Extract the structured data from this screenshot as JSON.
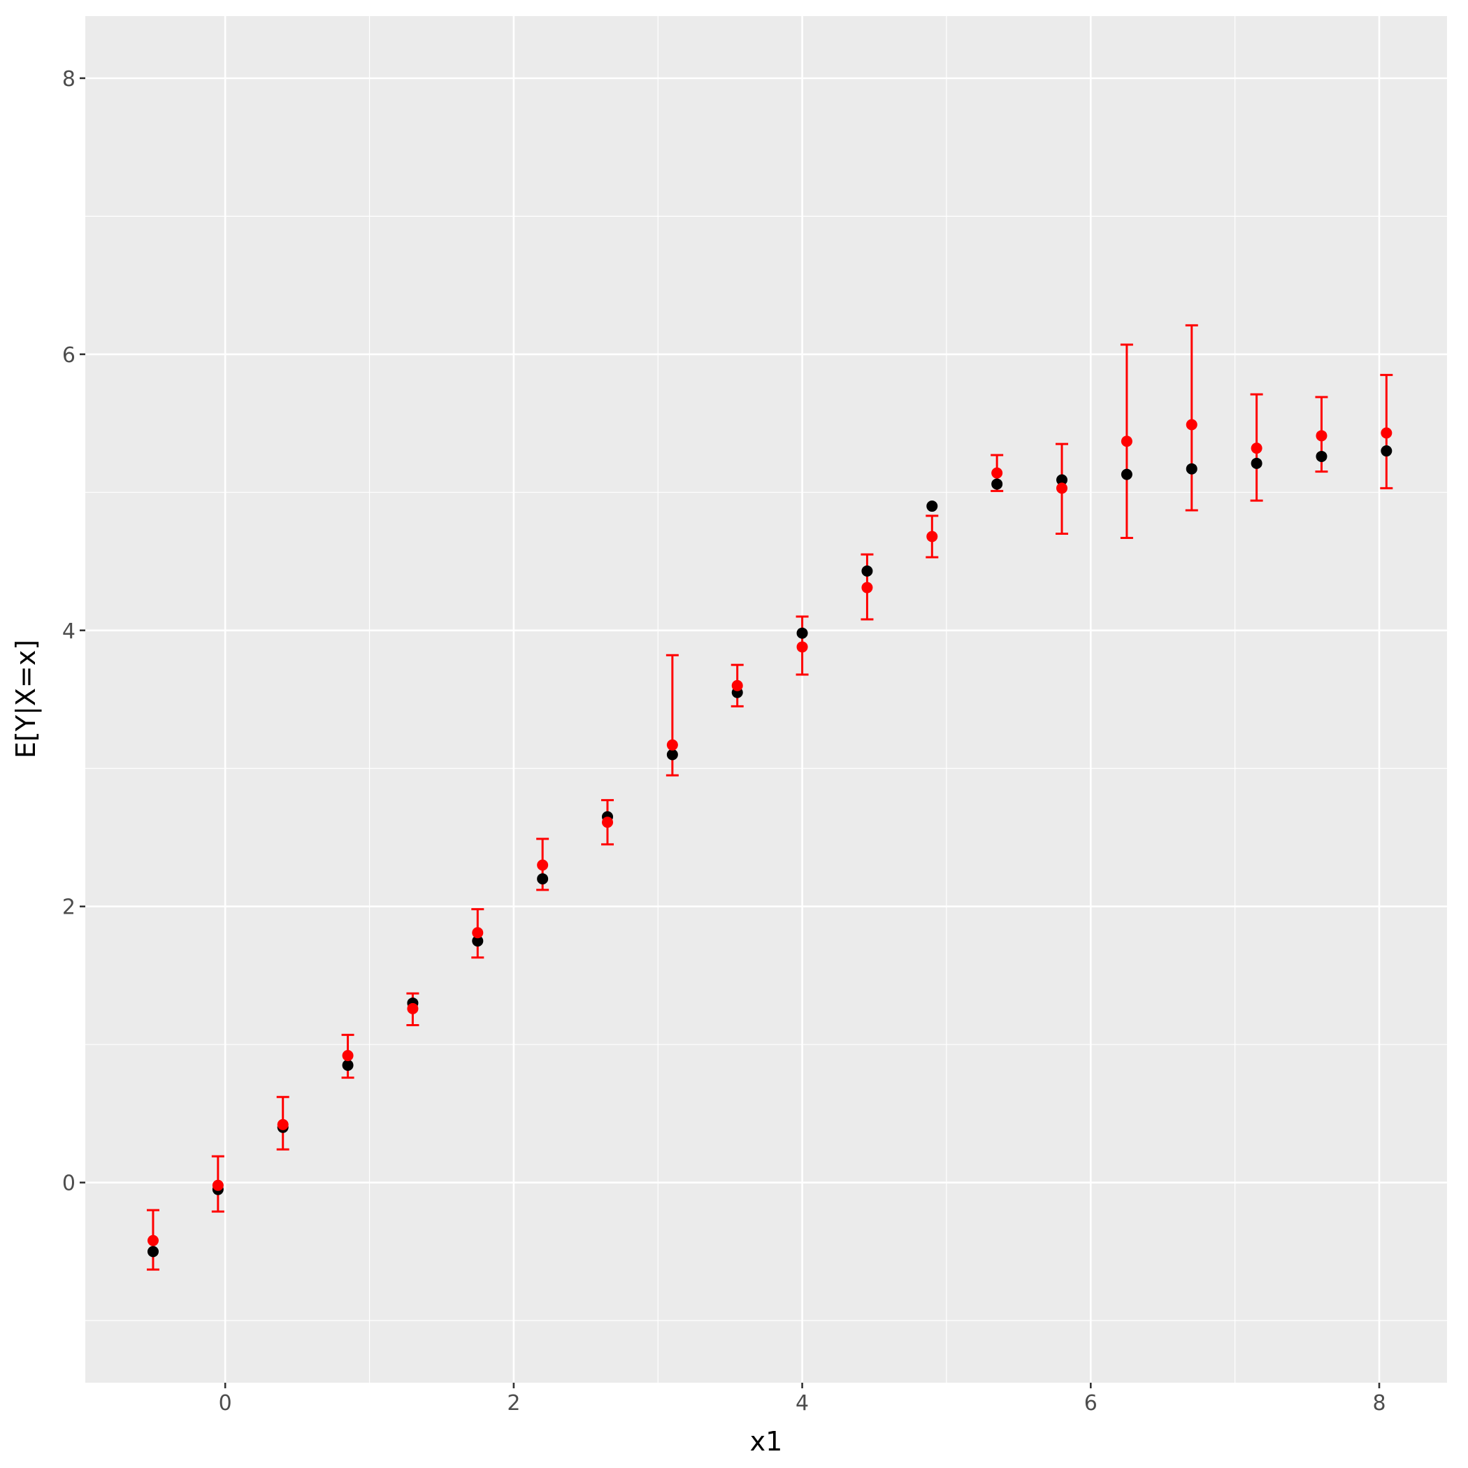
{
  "chart_data": {
    "type": "scatter",
    "title": "",
    "xlabel": "x1",
    "ylabel": "E[Y|X=x]",
    "xlim": [
      -0.97,
      8.47
    ],
    "ylim": [
      -1.45,
      8.45
    ],
    "x_ticks": [
      0,
      2,
      4,
      6,
      8
    ],
    "y_ticks": [
      0,
      2,
      4,
      6,
      8
    ],
    "x_tick_labels": [
      "0",
      "2",
      "4",
      "6",
      "8"
    ],
    "y_tick_labels": [
      "0",
      "2",
      "4",
      "6",
      "8"
    ],
    "grid": true,
    "legend": "none",
    "colors": {
      "panel": "#ebebeb",
      "grid": "#ffffff",
      "true_points": "#000000",
      "estimates": "#ff0000",
      "tick_text": "#4d4d4d",
      "tick_mark": "#333333"
    },
    "x": [
      -0.5,
      -0.05,
      0.4,
      0.85,
      1.3,
      1.75,
      2.2,
      2.65,
      3.1,
      3.55,
      4.0,
      4.45,
      4.9,
      5.35,
      5.8,
      6.25,
      6.7,
      7.15,
      7.6,
      8.05
    ],
    "series": [
      {
        "role": "true",
        "y": [
          -0.5,
          -0.05,
          0.4,
          0.85,
          1.3,
          1.75,
          2.2,
          2.65,
          3.1,
          3.55,
          3.98,
          4.43,
          4.9,
          5.06,
          5.09,
          5.13,
          5.17,
          5.21,
          5.26,
          5.3
        ]
      },
      {
        "role": "estimate",
        "y": [
          -0.42,
          -0.02,
          0.42,
          0.92,
          1.26,
          1.81,
          2.3,
          2.61,
          3.17,
          3.6,
          3.88,
          4.31,
          4.68,
          5.14,
          5.03,
          5.37,
          5.49,
          5.32,
          5.41,
          5.43
        ],
        "lower": [
          -0.63,
          -0.21,
          0.24,
          0.76,
          1.14,
          1.63,
          2.12,
          2.45,
          2.95,
          3.45,
          3.68,
          4.08,
          4.53,
          5.01,
          4.7,
          4.67,
          4.87,
          4.94,
          5.15,
          5.03
        ],
        "upper": [
          -0.2,
          0.19,
          0.62,
          1.07,
          1.37,
          1.98,
          2.49,
          2.77,
          3.82,
          3.75,
          4.1,
          4.55,
          4.83,
          5.27,
          5.35,
          6.07,
          6.21,
          5.71,
          5.69,
          5.85
        ]
      }
    ]
  }
}
